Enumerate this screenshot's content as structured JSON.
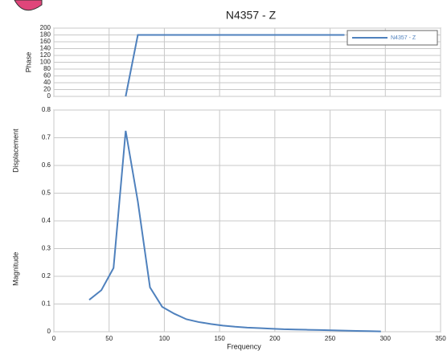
{
  "chart_data": [
    {
      "type": "line",
      "title": "N4357 - Z",
      "ylabel": "Phase",
      "x": [
        32,
        43,
        54,
        65,
        76,
        87,
        98,
        109,
        120,
        131,
        142,
        153,
        164,
        175,
        186,
        197,
        208,
        219,
        230,
        241,
        252,
        263
      ],
      "series": [
        {
          "name": "N4357 - Z",
          "color": "#4f81bd",
          "values": [
            null,
            null,
            null,
            0,
            180,
            180,
            180,
            180,
            180,
            180,
            180,
            180,
            180,
            180,
            180,
            180,
            180,
            180,
            180,
            180,
            180,
            180
          ]
        }
      ],
      "xlim": [
        0,
        350
      ],
      "xticks": [
        0,
        50,
        100,
        150,
        200,
        250,
        300,
        350
      ],
      "ylim": [
        0,
        200
      ],
      "yticks": [
        0,
        20,
        40,
        60,
        80,
        100,
        120,
        140,
        160,
        180,
        200
      ],
      "grid": true,
      "legend": "upper right"
    },
    {
      "type": "line",
      "ylabel": [
        "Displacement",
        "Magnitude"
      ],
      "xlabel": "Frequency",
      "x": [
        32,
        43,
        54,
        65,
        76,
        87,
        98,
        109,
        120,
        131,
        142,
        153,
        164,
        175,
        186,
        197,
        208,
        219,
        230,
        241,
        252,
        263,
        274,
        285,
        296
      ],
      "series": [
        {
          "color": "#4f81bd",
          "values": [
            0.115,
            0.15,
            0.23,
            0.725,
            0.47,
            0.16,
            0.09,
            0.065,
            0.045,
            0.035,
            0.028,
            0.022,
            0.018,
            0.015,
            0.013,
            0.011,
            0.009,
            0.008,
            0.007,
            0.006,
            0.005,
            0.004,
            0.003,
            0.002,
            0.001
          ]
        }
      ],
      "xlim": [
        0,
        350
      ],
      "xticks": [
        0,
        50,
        100,
        150,
        200,
        250,
        300,
        350
      ],
      "ylim": [
        0,
        0.8
      ],
      "yticks": [
        0,
        0.1,
        0.2,
        0.3,
        0.4,
        0.5,
        0.6,
        0.7,
        0.8
      ],
      "grid": true
    }
  ]
}
